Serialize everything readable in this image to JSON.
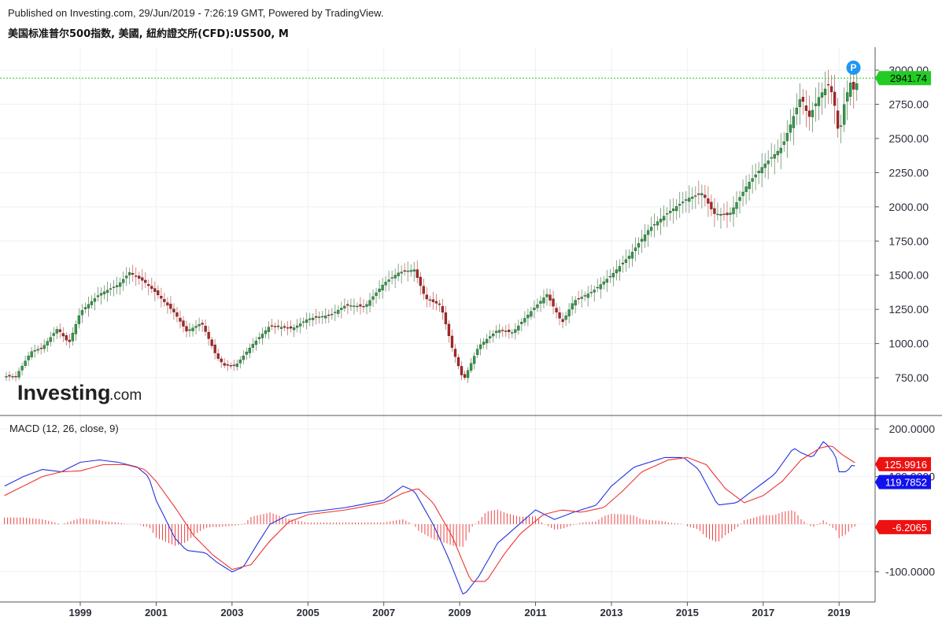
{
  "header": {
    "published": "Published on Investing.com, 29/Jun/2019 - 7:26:19 GMT, Powered by TradingView.",
    "symbol": "美国标准普尔500指数, 美國, 紐約證交所(CFD):US500, M"
  },
  "logo": {
    "main": "Investing",
    "suffix": ".com"
  },
  "colors": {
    "up": "#2e9e44",
    "down": "#b22222",
    "macd": "#2233dd",
    "signal": "#ee3333",
    "hist": "#ee4444",
    "last": "#22cc22"
  },
  "chart_data": [
    {
      "type": "candlestick",
      "interval": "M",
      "x_ticks": [
        "1999",
        "2001",
        "2003",
        "2005",
        "2007",
        "2009",
        "2011",
        "2013",
        "2015",
        "2017",
        "2019"
      ],
      "y_ticks": [
        "750.00",
        "1000.00",
        "1250.00",
        "1500.00",
        "1750.00",
        "2000.00",
        "2250.00",
        "2500.00",
        "2750.00",
        "3000.00"
      ],
      "ylim": [
        520,
        3110
      ],
      "last_price": 2941.74,
      "last_price_label": "2941.74",
      "marker": "P",
      "close_anchors": [
        [
          1997.3,
          760
        ],
        [
          1997.7,
          940
        ],
        [
          1998.0,
          970
        ],
        [
          1998.4,
          1110
        ],
        [
          1998.7,
          1000
        ],
        [
          1999.0,
          1230
        ],
        [
          1999.5,
          1360
        ],
        [
          2000.0,
          1430
        ],
        [
          2000.3,
          1520
        ],
        [
          2000.7,
          1450
        ],
        [
          2001.0,
          1370
        ],
        [
          2001.5,
          1220
        ],
        [
          2001.8,
          1090
        ],
        [
          2002.2,
          1150
        ],
        [
          2002.6,
          900
        ],
        [
          2002.8,
          840
        ],
        [
          2003.1,
          840
        ],
        [
          2003.5,
          980
        ],
        [
          2004.0,
          1130
        ],
        [
          2004.6,
          1110
        ],
        [
          2005.0,
          1180
        ],
        [
          2005.6,
          1210
        ],
        [
          2006.0,
          1280
        ],
        [
          2006.5,
          1270
        ],
        [
          2007.0,
          1440
        ],
        [
          2007.4,
          1520
        ],
        [
          2007.8,
          1540
        ],
        [
          2008.1,
          1330
        ],
        [
          2008.5,
          1280
        ],
        [
          2008.8,
          970
        ],
        [
          2009.1,
          730
        ],
        [
          2009.5,
          980
        ],
        [
          2010.0,
          1100
        ],
        [
          2010.4,
          1080
        ],
        [
          2010.7,
          1180
        ],
        [
          2011.3,
          1360
        ],
        [
          2011.7,
          1150
        ],
        [
          2012.0,
          1310
        ],
        [
          2012.5,
          1380
        ],
        [
          2013.0,
          1500
        ],
        [
          2013.5,
          1650
        ],
        [
          2014.0,
          1840
        ],
        [
          2014.5,
          1960
        ],
        [
          2015.0,
          2060
        ],
        [
          2015.4,
          2100
        ],
        [
          2015.7,
          1950
        ],
        [
          2016.1,
          1940
        ],
        [
          2016.6,
          2170
        ],
        [
          2017.0,
          2300
        ],
        [
          2017.5,
          2440
        ],
        [
          2018.0,
          2810
        ],
        [
          2018.2,
          2650
        ],
        [
          2018.5,
          2820
        ],
        [
          2018.75,
          2900
        ],
        [
          2018.9,
          2720
        ],
        [
          2019.0,
          2500
        ],
        [
          2019.15,
          2780
        ],
        [
          2019.35,
          2950
        ],
        [
          2019.42,
          2760
        ],
        [
          2019.48,
          2941.74
        ]
      ]
    },
    {
      "type": "line",
      "title": "MACD (12, 26, close, 9)",
      "y_ticks": [
        "-100.0000",
        "100.0000",
        "200.0000"
      ],
      "ylim": [
        -160,
        220
      ],
      "labels": {
        "signal": "125.9916",
        "macd": "119.7852",
        "hist": "-6.2065"
      },
      "macd_anchors": [
        [
          1997.0,
          80
        ],
        [
          1997.5,
          100
        ],
        [
          1998.0,
          115
        ],
        [
          1998.5,
          110
        ],
        [
          1999.0,
          130
        ],
        [
          1999.5,
          135
        ],
        [
          2000.0,
          130
        ],
        [
          2000.5,
          120
        ],
        [
          2000.8,
          100
        ],
        [
          2001.0,
          50
        ],
        [
          2001.5,
          -30
        ],
        [
          2001.8,
          -55
        ],
        [
          2002.3,
          -60
        ],
        [
          2002.6,
          -80
        ],
        [
          2003.0,
          -100
        ],
        [
          2003.3,
          -90
        ],
        [
          2003.6,
          -50
        ],
        [
          2004.0,
          0
        ],
        [
          2004.5,
          20
        ],
        [
          2005.0,
          25
        ],
        [
          2006.0,
          35
        ],
        [
          2007.0,
          50
        ],
        [
          2007.5,
          80
        ],
        [
          2007.8,
          70
        ],
        [
          2008.3,
          0
        ],
        [
          2008.7,
          -70
        ],
        [
          2009.1,
          -150
        ],
        [
          2009.5,
          -110
        ],
        [
          2010.0,
          -40
        ],
        [
          2010.5,
          -5
        ],
        [
          2011.0,
          30
        ],
        [
          2011.5,
          10
        ],
        [
          2012.0,
          25
        ],
        [
          2012.6,
          40
        ],
        [
          2013.0,
          80
        ],
        [
          2013.6,
          120
        ],
        [
          2014.4,
          140
        ],
        [
          2014.9,
          140
        ],
        [
          2015.3,
          115
        ],
        [
          2015.8,
          40
        ],
        [
          2016.3,
          45
        ],
        [
          2016.8,
          75
        ],
        [
          2017.3,
          105
        ],
        [
          2017.8,
          160
        ],
        [
          2018.0,
          150
        ],
        [
          2018.3,
          140
        ],
        [
          2018.6,
          175
        ],
        [
          2018.9,
          145
        ],
        [
          2019.0,
          110
        ],
        [
          2019.2,
          110
        ],
        [
          2019.35,
          125
        ],
        [
          2019.48,
          119.79
        ]
      ],
      "signal_anchors": [
        [
          1997.0,
          60
        ],
        [
          1997.5,
          80
        ],
        [
          1998.0,
          100
        ],
        [
          1998.5,
          110
        ],
        [
          1999.0,
          112
        ],
        [
          1999.6,
          125
        ],
        [
          2000.2,
          125
        ],
        [
          2000.7,
          115
        ],
        [
          2001.0,
          90
        ],
        [
          2001.5,
          35
        ],
        [
          2002.0,
          -25
        ],
        [
          2002.5,
          -65
        ],
        [
          2003.0,
          -95
        ],
        [
          2003.5,
          -85
        ],
        [
          2004.0,
          -35
        ],
        [
          2004.5,
          5
        ],
        [
          2005.0,
          20
        ],
        [
          2006.0,
          30
        ],
        [
          2007.0,
          45
        ],
        [
          2007.5,
          65
        ],
        [
          2007.9,
          75
        ],
        [
          2008.3,
          45
        ],
        [
          2008.8,
          -25
        ],
        [
          2009.3,
          -120
        ],
        [
          2009.7,
          -120
        ],
        [
          2010.2,
          -60
        ],
        [
          2010.6,
          -20
        ],
        [
          2011.2,
          20
        ],
        [
          2011.7,
          30
        ],
        [
          2012.2,
          25
        ],
        [
          2012.8,
          35
        ],
        [
          2013.3,
          70
        ],
        [
          2013.8,
          110
        ],
        [
          2014.5,
          135
        ],
        [
          2015.0,
          140
        ],
        [
          2015.5,
          125
        ],
        [
          2016.0,
          75
        ],
        [
          2016.5,
          45
        ],
        [
          2017.0,
          60
        ],
        [
          2017.5,
          90
        ],
        [
          2018.0,
          135
        ],
        [
          2018.5,
          160
        ],
        [
          2018.8,
          165
        ],
        [
          2019.1,
          145
        ],
        [
          2019.48,
          125.99
        ]
      ]
    }
  ]
}
